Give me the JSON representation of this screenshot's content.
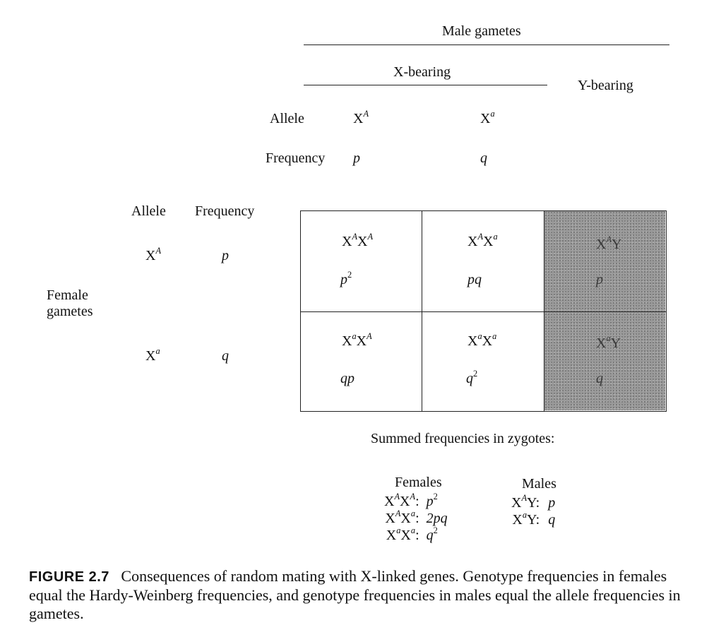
{
  "header": {
    "male_gametes": "Male gametes",
    "x_bearing": "X-bearing",
    "y_bearing": "Y-bearing",
    "allele_label": "Allele",
    "frequency_label": "Frequency",
    "male_alleles": [
      {
        "base": "X",
        "sup": "A",
        "freq": "p"
      },
      {
        "base": "X",
        "sup": "a",
        "freq": "q"
      }
    ]
  },
  "female": {
    "allele_header": "Allele",
    "frequency_header": "Frequency",
    "gametes_label_line1": "Female",
    "gametes_label_line2": "gametes",
    "rows": [
      {
        "base": "X",
        "sup": "A",
        "freq": "p"
      },
      {
        "base": "X",
        "sup": "a",
        "freq": "q"
      }
    ]
  },
  "punnett": {
    "cells": [
      [
        {
          "genotype": [
            [
              "X",
              "A"
            ],
            [
              "X",
              "A"
            ]
          ],
          "freq_base": "p",
          "freq_sup": "2"
        },
        {
          "genotype": [
            [
              "X",
              "A"
            ],
            [
              "X",
              "a"
            ]
          ],
          "freq_base": "pq",
          "freq_sup": ""
        },
        {
          "genotype": [
            [
              "X",
              "A"
            ],
            [
              "Y",
              ""
            ]
          ],
          "freq_base": "p",
          "freq_sup": ""
        }
      ],
      [
        {
          "genotype": [
            [
              "X",
              "a"
            ],
            [
              "X",
              "A"
            ]
          ],
          "freq_base": "qp",
          "freq_sup": ""
        },
        {
          "genotype": [
            [
              "X",
              "a"
            ],
            [
              "X",
              "a"
            ]
          ],
          "freq_base": "q",
          "freq_sup": "2"
        },
        {
          "genotype": [
            [
              "X",
              "a"
            ],
            [
              "Y",
              ""
            ]
          ],
          "freq_base": "q",
          "freq_sup": ""
        }
      ]
    ],
    "shaded_column": 2,
    "shade_color": "#9a9a9a"
  },
  "summary": {
    "title": "Summed frequencies in zygotes:",
    "females_title": "Females",
    "males_title": "Males",
    "females": [
      {
        "genotype": [
          [
            "X",
            "A"
          ],
          [
            "X",
            "A"
          ]
        ],
        "freq_base": "p",
        "freq_sup": "2"
      },
      {
        "genotype": [
          [
            "X",
            "A"
          ],
          [
            "X",
            "a"
          ]
        ],
        "freq_base": "2pq",
        "freq_sup": ""
      },
      {
        "genotype": [
          [
            "X",
            "a"
          ],
          [
            "X",
            "a"
          ]
        ],
        "freq_base": "q",
        "freq_sup": "2"
      }
    ],
    "males": [
      {
        "genotype": [
          [
            "X",
            "A"
          ],
          [
            "Y",
            ""
          ]
        ],
        "freq_base": "p",
        "freq_sup": ""
      },
      {
        "genotype": [
          [
            "X",
            "a"
          ],
          [
            "Y",
            ""
          ]
        ],
        "freq_base": "q",
        "freq_sup": ""
      }
    ]
  },
  "caption": {
    "label": "FIGURE 2.7",
    "text": "Consequences of random mating with X-linked genes. Genotype frequencies in females equal the Hardy-Weinberg frequencies, and genotype frequencies in males equal the allele frequencies in gametes."
  }
}
